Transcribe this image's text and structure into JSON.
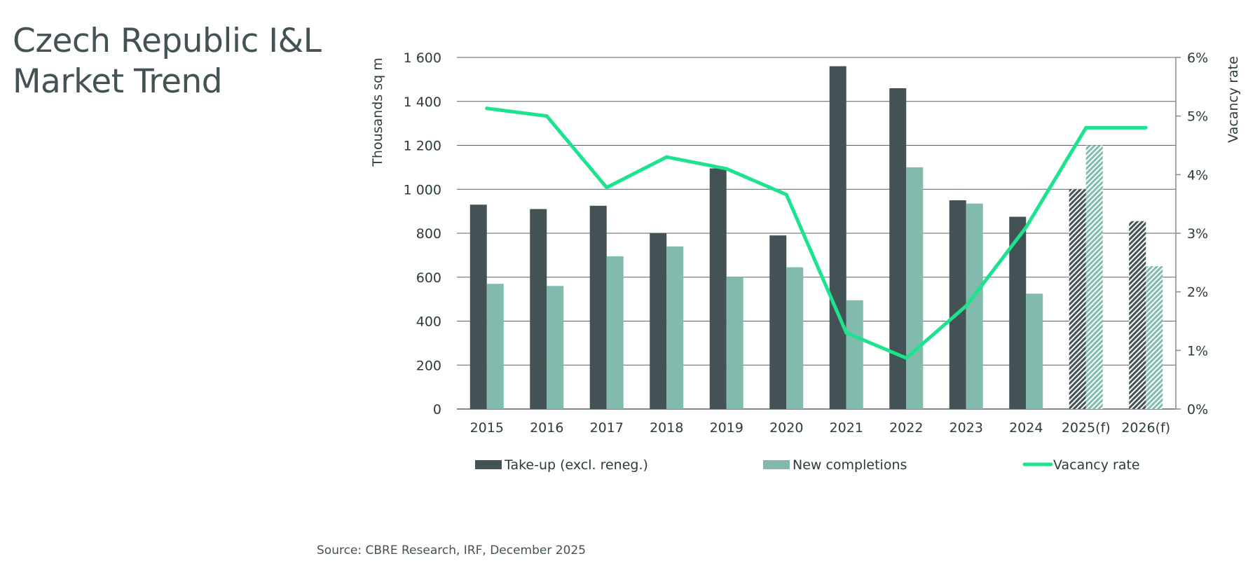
{
  "title": {
    "line1": "Czech Republic I&L",
    "line2": "Market Trend"
  },
  "source": "Source: CBRE Research, IRF, December 2025",
  "colors": {
    "takeup": "#435254",
    "completions": "#80bbad",
    "vacancy": "#1de28e",
    "text": "#435254",
    "grid": "#5a6466"
  },
  "chart_data": {
    "type": "bar",
    "title": "",
    "categories": [
      "2015",
      "2016",
      "2017",
      "2018",
      "2019",
      "2020",
      "2021",
      "2022",
      "2023",
      "2024",
      "2025(f)",
      "2026(f)"
    ],
    "forecast_categories": [
      "2025(f)",
      "2026(f)"
    ],
    "series": [
      {
        "name": "Take-up (excl. reneg.)",
        "type": "bar",
        "axis": "left",
        "values": [
          930,
          910,
          925,
          800,
          1095,
          790,
          1560,
          1460,
          950,
          875,
          1000,
          855
        ]
      },
      {
        "name": "New completions",
        "type": "bar",
        "axis": "left",
        "values": [
          570,
          560,
          695,
          740,
          600,
          645,
          495,
          1100,
          935,
          525,
          1200,
          650
        ]
      },
      {
        "name": "Vacancy rate",
        "type": "line",
        "axis": "right",
        "unit": "%",
        "values": [
          5.13,
          5.0,
          3.78,
          4.3,
          4.1,
          3.66,
          1.3,
          0.87,
          1.76,
          3.1,
          4.8,
          4.8
        ]
      }
    ],
    "ylabel": "Thousands sq m",
    "ylim": [
      0,
      1600
    ],
    "yticks": [
      0,
      200,
      400,
      600,
      800,
      1000,
      1200,
      1400,
      1600
    ],
    "ytick_labels": [
      "0",
      "200",
      "400",
      "600",
      "800",
      "1 000",
      "1 200",
      "1 400",
      "1 600"
    ],
    "y2label": "Vacancy rate",
    "y2lim": [
      0,
      6
    ],
    "y2ticks": [
      0,
      1,
      2,
      3,
      4,
      5,
      6
    ],
    "y2tick_labels": [
      "0%",
      "1%",
      "2%",
      "3%",
      "4%",
      "5%",
      "6%"
    ],
    "xlabel": "",
    "grid": true,
    "legend": {
      "placement": "bottom",
      "entries": [
        "Take-up (excl. reneg.)",
        "New completions",
        "Vacancy rate"
      ]
    }
  }
}
